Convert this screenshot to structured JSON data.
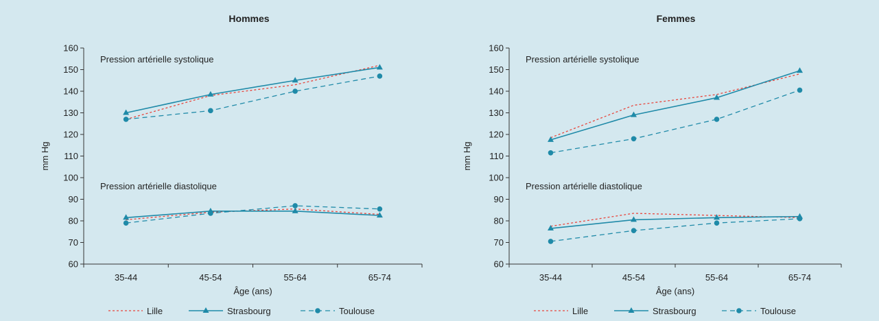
{
  "colors": {
    "background": "#d4e8ef",
    "lille": "#e8453c",
    "strasbourg": "#1f8aa8",
    "toulouse": "#1f8aa8"
  },
  "legend": {
    "lille": "Lille",
    "strasbourg": "Strasbourg",
    "toulouse": "Toulouse"
  },
  "chart_data": [
    {
      "type": "line",
      "title": "Hommes",
      "xlabel": "Âge (ans)",
      "ylabel": "mm Hg",
      "ylim": [
        60,
        160
      ],
      "yticks": [
        60,
        70,
        80,
        90,
        100,
        110,
        120,
        130,
        140,
        150,
        160
      ],
      "categories": [
        "35-44",
        "45-54",
        "55-64",
        "65-74"
      ],
      "annotations": [
        "Pression artérielle systolique",
        "Pression artérielle diastolique"
      ],
      "legend_position": "bottom",
      "series": [
        {
          "name": "Lille",
          "group": "systolique",
          "values": [
            127,
            138,
            143,
            152
          ]
        },
        {
          "name": "Strasbourg",
          "group": "systolique",
          "values": [
            130,
            138.5,
            145,
            151
          ]
        },
        {
          "name": "Toulouse",
          "group": "systolique",
          "values": [
            127,
            131,
            140,
            147
          ]
        },
        {
          "name": "Lille",
          "group": "diastolique",
          "values": [
            80.5,
            84,
            85.5,
            83
          ]
        },
        {
          "name": "Strasbourg",
          "group": "diastolique",
          "values": [
            81.5,
            84.5,
            84.5,
            82.5
          ]
        },
        {
          "name": "Toulouse",
          "group": "diastolique",
          "values": [
            79,
            83.5,
            87,
            85.5
          ]
        }
      ]
    },
    {
      "type": "line",
      "title": "Femmes",
      "xlabel": "Âge (ans)",
      "ylabel": "mm Hg",
      "ylim": [
        60,
        160
      ],
      "yticks": [
        60,
        70,
        80,
        90,
        100,
        110,
        120,
        130,
        140,
        150,
        160
      ],
      "categories": [
        "35-44",
        "45-54",
        "55-64",
        "65-74"
      ],
      "annotations": [
        "Pression artérielle systolique",
        "Pression artérielle diastolique"
      ],
      "legend_position": "bottom",
      "series": [
        {
          "name": "Lille",
          "group": "systolique",
          "values": [
            118.5,
            133.5,
            138.5,
            148
          ]
        },
        {
          "name": "Strasbourg",
          "group": "systolique",
          "values": [
            117.5,
            129,
            137,
            149.5
          ]
        },
        {
          "name": "Toulouse",
          "group": "systolique",
          "values": [
            111.5,
            118,
            127,
            140.5
          ]
        },
        {
          "name": "Lille",
          "group": "diastolique",
          "values": [
            77.5,
            83.5,
            82.5,
            81.5
          ]
        },
        {
          "name": "Strasbourg",
          "group": "diastolique",
          "values": [
            76.5,
            80.5,
            81.5,
            82
          ]
        },
        {
          "name": "Toulouse",
          "group": "diastolique",
          "values": [
            70.5,
            75.5,
            79,
            81
          ]
        }
      ]
    }
  ]
}
